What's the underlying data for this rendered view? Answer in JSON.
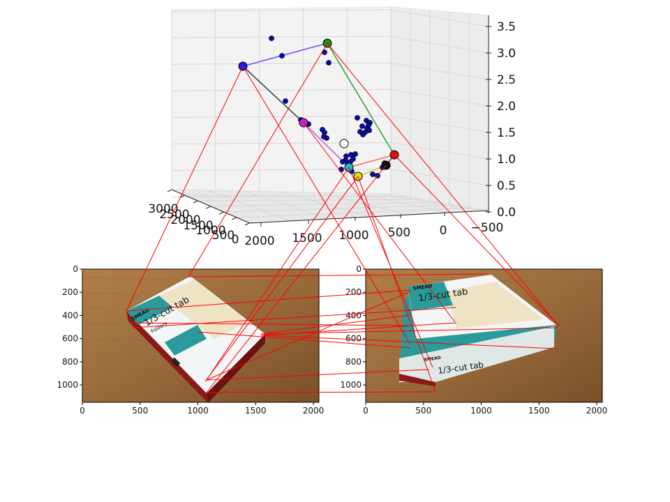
{
  "chart_data": [
    {
      "type": "scatter3d",
      "title": "",
      "axes": {
        "x": {
          "label": "",
          "range": [
            -500,
            2000
          ],
          "ticks": [
            "2000",
            "1500",
            "1000",
            "500",
            "0",
            "−500"
          ]
        },
        "y": {
          "label": "",
          "range": [
            0,
            3000
          ],
          "ticks": [
            "3000",
            "2500",
            "2000",
            "1500",
            "1000",
            "500",
            "0"
          ]
        },
        "z": {
          "label": "",
          "range": [
            0,
            3.5
          ],
          "ticks": [
            "3.5",
            "3.0",
            "2.5",
            "2.0",
            "1.5",
            "1.0",
            "0.5",
            "0.0"
          ]
        }
      },
      "grid": true,
      "corner_points": [
        {
          "name": "blue",
          "color": "#1a1aff",
          "z": 2.75
        },
        {
          "name": "green",
          "color": "#1a8f1a",
          "z": 3.1
        },
        {
          "name": "magenta",
          "color": "#cc22cc",
          "z": 1.55
        },
        {
          "name": "white",
          "color": "#ffffff",
          "z": 1.3
        },
        {
          "name": "cyan",
          "color": "#22bbcc",
          "z": 0.85
        },
        {
          "name": "yellow",
          "color": "#dddd22",
          "z": 0.7
        },
        {
          "name": "red",
          "color": "#e01010",
          "z": 1.1
        },
        {
          "name": "black",
          "color": "#111111",
          "z": 0.95
        }
      ],
      "edges": [
        {
          "from": "blue",
          "to": "green",
          "color": "#5b5bff"
        },
        {
          "from": "green",
          "to": "red",
          "color": "#3a9f3a"
        },
        {
          "from": "blue",
          "to": "magenta",
          "color": "#2f4f4f"
        },
        {
          "from": "magenta",
          "to": "cyan",
          "color": "#b36be0"
        },
        {
          "from": "cyan",
          "to": "red",
          "color": "#ff6666"
        },
        {
          "from": "cyan",
          "to": "yellow",
          "color": "#cccc33"
        },
        {
          "from": "yellow",
          "to": "black",
          "color": "#cccc33"
        },
        {
          "from": "red",
          "to": "black",
          "color": "#cc3333"
        }
      ],
      "feature_point_color": "#0a0aa8"
    },
    {
      "type": "image",
      "name": "left photo",
      "xlim": [
        0,
        2048
      ],
      "ylim": [
        1150,
        0
      ],
      "xticks": [
        "0",
        "500",
        "1000",
        "1500",
        "2000"
      ],
      "yticks": [
        "0",
        "200",
        "400",
        "600",
        "800",
        "1000"
      ]
    },
    {
      "type": "image",
      "name": "right photo",
      "xlim": [
        0,
        2048
      ],
      "ylim": [
        1150,
        0
      ],
      "xticks": [
        "0",
        "500",
        "1000",
        "1500",
        "2000"
      ],
      "yticks": [
        "0",
        "200",
        "400",
        "600",
        "800",
        "1000"
      ]
    }
  ],
  "photo_text": {
    "brand": "SMEAD",
    "product": "1/3-cut tab",
    "subtitle": "Folders"
  },
  "colors": {
    "match_line": "#ff0000",
    "wood": "#9a6b3c",
    "box_teal": "#2a9a9a",
    "box_cream": "#eee3c4",
    "box_red": "#8a1a1a"
  }
}
